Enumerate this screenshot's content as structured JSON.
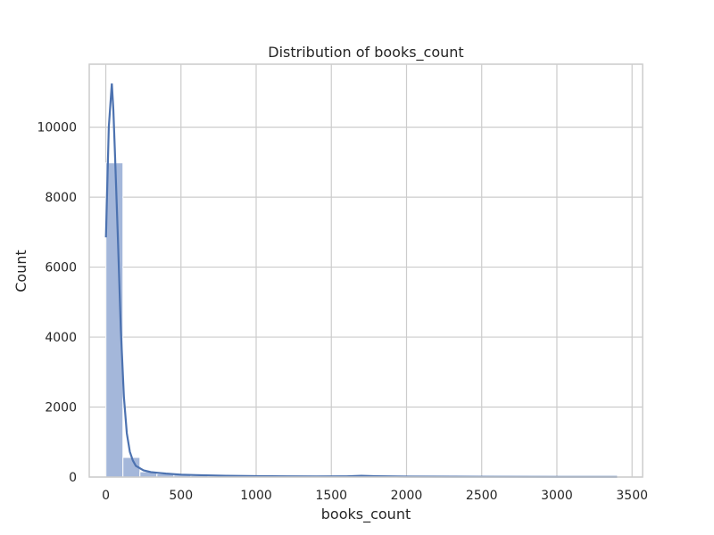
{
  "chart_data": {
    "type": "bar",
    "title": "Distribution of books_count",
    "xlabel": "books_count",
    "ylabel": "Count",
    "xlim": [
      -110,
      3570
    ],
    "ylim": [
      0,
      11800
    ],
    "x_ticks": [
      0,
      500,
      1000,
      1500,
      2000,
      2500,
      3000,
      3500
    ],
    "x_tick_labels": [
      "0",
      "500",
      "1000",
      "1500",
      "2000",
      "2500",
      "3000",
      "3500"
    ],
    "y_ticks": [
      0,
      2000,
      4000,
      6000,
      8000,
      10000
    ],
    "y_tick_labels": [
      "0",
      "2000",
      "4000",
      "6000",
      "8000",
      "10000"
    ],
    "grid": true,
    "colors": {
      "bar": "#a4b7da",
      "kde": "#4c72b0"
    },
    "bin_width": 113,
    "bins": [
      {
        "x0": 1,
        "x1": 114,
        "count": 8980
      },
      {
        "x0": 114,
        "x1": 227,
        "count": 560
      },
      {
        "x0": 227,
        "x1": 340,
        "count": 150
      },
      {
        "x0": 340,
        "x1": 453,
        "count": 95
      },
      {
        "x0": 453,
        "x1": 566,
        "count": 60
      },
      {
        "x0": 566,
        "x1": 679,
        "count": 40
      },
      {
        "x0": 679,
        "x1": 792,
        "count": 30
      },
      {
        "x0": 792,
        "x1": 905,
        "count": 20
      },
      {
        "x0": 905,
        "x1": 1018,
        "count": 15
      },
      {
        "x0": 1018,
        "x1": 1131,
        "count": 12
      },
      {
        "x0": 1131,
        "x1": 1244,
        "count": 10
      },
      {
        "x0": 1244,
        "x1": 1357,
        "count": 10
      },
      {
        "x0": 1357,
        "x1": 1470,
        "count": 8
      },
      {
        "x0": 1470,
        "x1": 1583,
        "count": 6
      },
      {
        "x0": 1583,
        "x1": 1696,
        "count": 8
      },
      {
        "x0": 1696,
        "x1": 1809,
        "count": 12
      },
      {
        "x0": 1809,
        "x1": 1922,
        "count": 6
      },
      {
        "x0": 1922,
        "x1": 2035,
        "count": 5
      },
      {
        "x0": 2035,
        "x1": 2148,
        "count": 4
      },
      {
        "x0": 2148,
        "x1": 2261,
        "count": 3
      },
      {
        "x0": 2261,
        "x1": 2374,
        "count": 3
      },
      {
        "x0": 2374,
        "x1": 2487,
        "count": 2
      },
      {
        "x0": 2487,
        "x1": 2600,
        "count": 2
      },
      {
        "x0": 2600,
        "x1": 2713,
        "count": 2
      },
      {
        "x0": 2713,
        "x1": 2826,
        "count": 2
      },
      {
        "x0": 2826,
        "x1": 2939,
        "count": 1
      },
      {
        "x0": 2939,
        "x1": 3052,
        "count": 1
      },
      {
        "x0": 3052,
        "x1": 3165,
        "count": 1
      },
      {
        "x0": 3165,
        "x1": 3278,
        "count": 1
      },
      {
        "x0": 3278,
        "x1": 3391,
        "count": 1
      }
    ],
    "kde": {
      "x": [
        1,
        20,
        40,
        50,
        60,
        80,
        100,
        120,
        140,
        160,
        180,
        200,
        250,
        300,
        350,
        400,
        500,
        600,
        700,
        800,
        1000,
        1200,
        1400,
        1600,
        1700,
        1800,
        2000,
        2500,
        3000,
        3400
      ],
      "y": [
        6850,
        10000,
        11250,
        10500,
        9400,
        6900,
        4200,
        2300,
        1250,
        720,
        470,
        320,
        190,
        140,
        120,
        100,
        70,
        55,
        45,
        35,
        25,
        20,
        18,
        20,
        35,
        22,
        12,
        8,
        6,
        4
      ]
    }
  }
}
